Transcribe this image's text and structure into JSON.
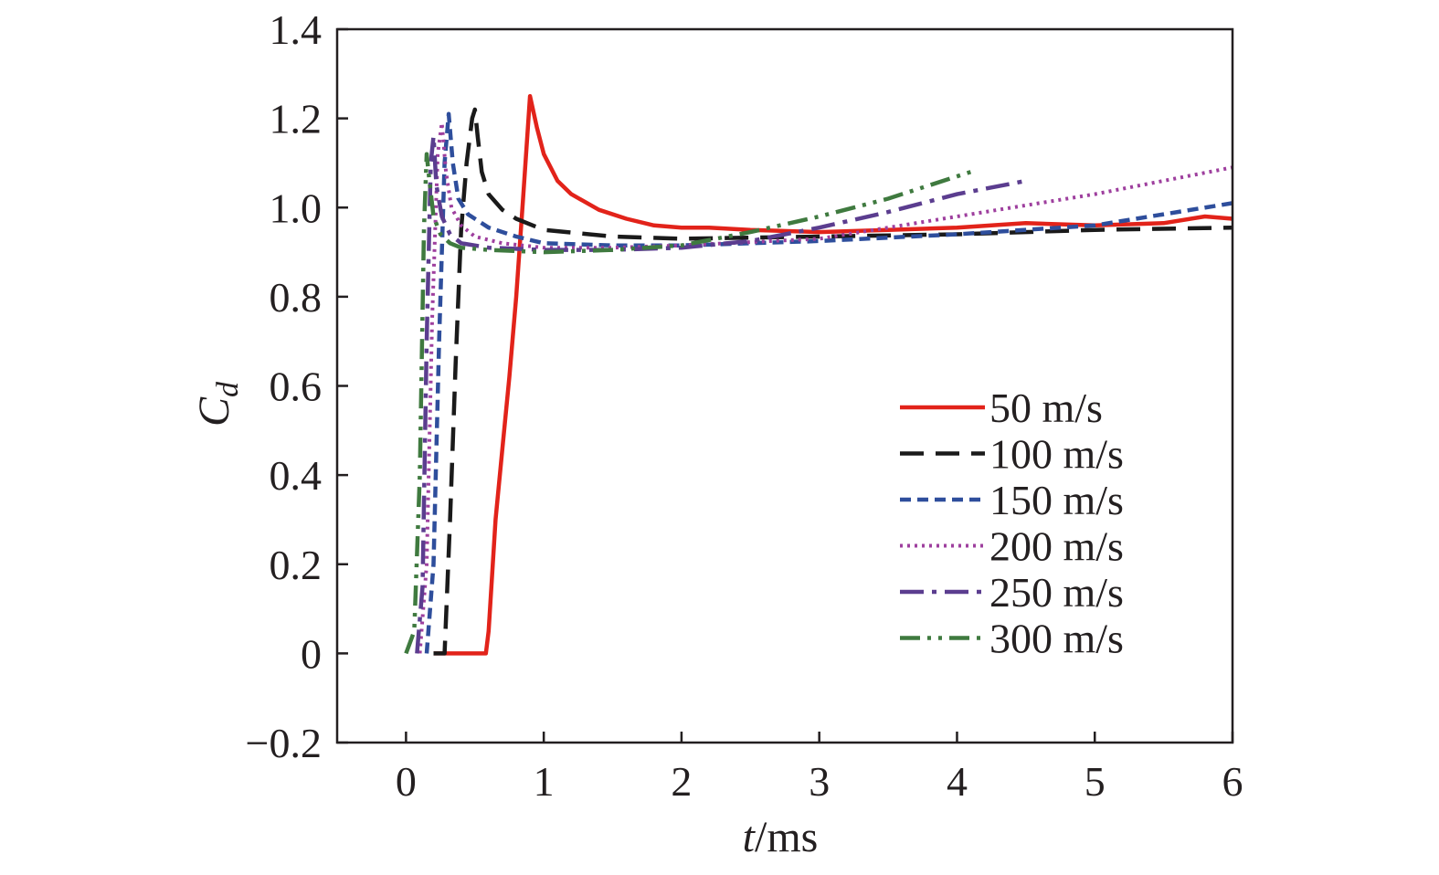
{
  "chart_data": {
    "type": "line",
    "title": "",
    "xlabel": {
      "italic": "t",
      "rest": "/ms"
    },
    "ylabel": {
      "main": "C",
      "sub": "d"
    },
    "xlim": [
      -0.5,
      6
    ],
    "ylim": [
      -0.2,
      1.4
    ],
    "xticks": [
      0,
      1,
      2,
      3,
      4,
      5,
      6
    ],
    "xtick_labels": [
      "0",
      "1",
      "2",
      "3",
      "4",
      "5",
      "6"
    ],
    "yticks": [
      -0.2,
      0,
      0.2,
      0.4,
      0.6,
      0.8,
      1.0,
      1.2,
      1.4
    ],
    "ytick_labels": [
      "−0.2",
      "0",
      "0.2",
      "0.4",
      "0.6",
      "0.8",
      "1.0",
      "1.2",
      "1.4"
    ],
    "grid": false,
    "legend_position": "lower-right",
    "series": [
      {
        "name": "50 m/s",
        "color": "#e2231a",
        "dash": "solid",
        "x": [
          0.2,
          0.58,
          0.6,
          0.65,
          0.7,
          0.75,
          0.8,
          0.85,
          0.9,
          0.95,
          1.0,
          1.1,
          1.2,
          1.4,
          1.6,
          1.8,
          2.0,
          2.2,
          2.5,
          3.0,
          3.5,
          4.0,
          4.5,
          5.0,
          5.5,
          5.8,
          6.0
        ],
        "y": [
          0.0,
          0.0,
          0.05,
          0.3,
          0.46,
          0.62,
          0.8,
          1.02,
          1.25,
          1.18,
          1.12,
          1.06,
          1.03,
          0.995,
          0.975,
          0.96,
          0.955,
          0.955,
          0.95,
          0.945,
          0.95,
          0.955,
          0.965,
          0.96,
          0.965,
          0.98,
          0.975
        ]
      },
      {
        "name": "100 m/s",
        "color": "#1a1a1a",
        "dash": "long-dash",
        "x": [
          0.2,
          0.28,
          0.32,
          0.36,
          0.4,
          0.44,
          0.48,
          0.5,
          0.52,
          0.55,
          0.6,
          0.7,
          0.8,
          1.0,
          1.5,
          2.0,
          3.0,
          4.0,
          5.0,
          6.0
        ],
        "y": [
          0.0,
          0.0,
          0.3,
          0.65,
          0.95,
          1.1,
          1.2,
          1.22,
          1.16,
          1.08,
          1.03,
          0.995,
          0.975,
          0.95,
          0.935,
          0.93,
          0.935,
          0.94,
          0.95,
          0.955
        ]
      },
      {
        "name": "150 m/s",
        "color": "#2e4e9c",
        "dash": "short-dash",
        "x": [
          0.15,
          0.2,
          0.24,
          0.28,
          0.31,
          0.34,
          0.38,
          0.45,
          0.6,
          0.8,
          1.0,
          1.5,
          2.0,
          3.0,
          4.0,
          5.0,
          5.5,
          6.0
        ],
        "y": [
          0.0,
          0.2,
          0.7,
          1.1,
          1.21,
          1.1,
          1.02,
          0.985,
          0.955,
          0.935,
          0.92,
          0.915,
          0.915,
          0.925,
          0.94,
          0.96,
          0.985,
          1.01
        ]
      },
      {
        "name": "200 m/s",
        "color": "#9e3f9e",
        "dash": "dotted",
        "x": [
          0.1,
          0.15,
          0.19,
          0.23,
          0.26,
          0.29,
          0.33,
          0.4,
          0.5,
          0.7,
          1.0,
          1.5,
          2.0,
          3.0,
          4.0,
          5.0,
          6.0
        ],
        "y": [
          0.0,
          0.2,
          0.75,
          1.12,
          1.19,
          1.08,
          1.0,
          0.96,
          0.935,
          0.92,
          0.91,
          0.91,
          0.915,
          0.93,
          0.98,
          1.03,
          1.09
        ]
      },
      {
        "name": "250 m/s",
        "color": "#5b3d8f",
        "dash": "dash-dot",
        "x": [
          0.08,
          0.12,
          0.15,
          0.18,
          0.2,
          0.22,
          0.26,
          0.32,
          0.4,
          0.6,
          1.0,
          1.5,
          2.0,
          2.5,
          3.0,
          3.5,
          4.0,
          4.5
        ],
        "y": [
          0.0,
          0.15,
          0.7,
          1.1,
          1.16,
          1.05,
          0.98,
          0.94,
          0.92,
          0.91,
          0.905,
          0.905,
          0.91,
          0.925,
          0.955,
          0.99,
          1.03,
          1.06
        ]
      },
      {
        "name": "300 m/s",
        "color": "#3f7a3f",
        "dash": "dash-dot-dot",
        "x": [
          0.0,
          0.06,
          0.1,
          0.13,
          0.15,
          0.17,
          0.2,
          0.25,
          0.32,
          0.4,
          0.6,
          1.0,
          1.5,
          2.0,
          2.5,
          3.0,
          3.5,
          4.1
        ],
        "y": [
          0.0,
          0.05,
          0.4,
          0.95,
          1.12,
          1.06,
          0.98,
          0.94,
          0.92,
          0.91,
          0.905,
          0.9,
          0.905,
          0.915,
          0.945,
          0.98,
          1.02,
          1.08
        ]
      }
    ]
  }
}
